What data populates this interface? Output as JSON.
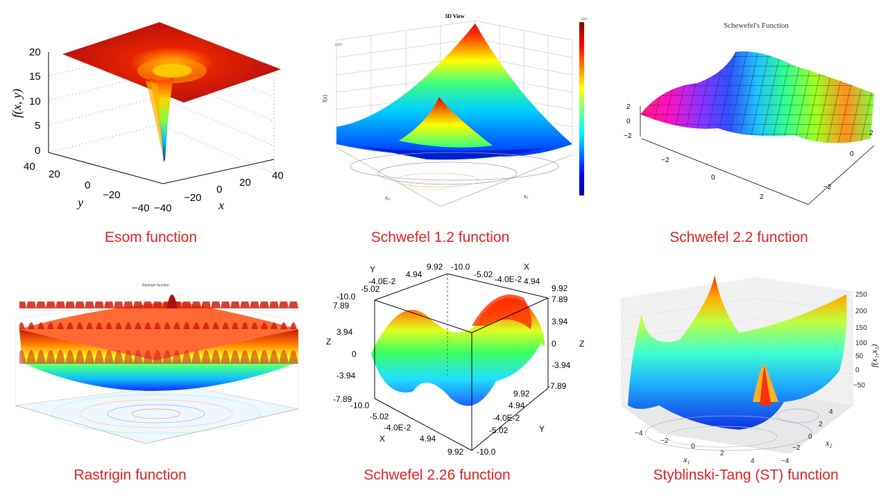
{
  "captions": {
    "esom": "Esom function",
    "schwefel12": "Schwefel 1.2 function",
    "schwefel22": "Schwefel 2.2 function",
    "rastrigin": "Rastrigin function",
    "schwefel226": "Schwefel 2.26 function",
    "st": "Styblinski-Tang (ST) function"
  },
  "esom_plot": {
    "zlabel": "f(x, y)",
    "xlabel": "x",
    "ylabel": "y",
    "zticks": [
      "20",
      "15",
      "10",
      "5",
      "0"
    ],
    "yticks": [
      "40",
      "20",
      "0",
      "−20",
      "−40"
    ],
    "xticks": [
      "−40",
      "−20",
      "0",
      "20",
      "40"
    ]
  },
  "schwefel12_plot": {
    "title": "3D View",
    "colorbar_scale": "x10⁴",
    "zlabel": "f(x)",
    "xlabel": "x₁",
    "ylabel": "x₂"
  },
  "schwefel22_plot": {
    "title": "Schewefel's Function",
    "zticks": [
      "2",
      "0",
      "−2"
    ],
    "xticks": [
      "−2",
      "0",
      "2"
    ],
    "yticks": [
      "2",
      "0",
      "−2"
    ]
  },
  "rastrigin_plot": {
    "title": "Rastrigin function"
  },
  "schwefel226_plot": {
    "labels": {
      "y_top": "Y",
      "x_top": "X",
      "z_left": "Z",
      "z_right": "Z",
      "x_bottom": "X",
      "y_bottom": "Y",
      "top_left": [
        "9.92",
        "4.94",
        "-4.0E-2",
        "-5.02",
        "-10.0"
      ],
      "top_right": [
        "-10.0",
        "-5.02",
        "-4.0E-2",
        "4.94",
        "9.92"
      ],
      "z_left_ticks": [
        "7.89",
        "3.94",
        "0",
        "-3.94",
        "-7.89"
      ],
      "z_right_ticks": [
        "7.89",
        "3.94",
        "0",
        "-3.94",
        "-7.89"
      ],
      "bottom_left": [
        "-10.0",
        "-5.02",
        "-4.0E-2",
        "4.94",
        "9.92"
      ],
      "bottom_right": [
        "9.92",
        "4.94",
        "-4.0E-2",
        "-5.02",
        "-10.0"
      ]
    }
  },
  "st_plot": {
    "zlabel": "f(x₁,x₂)",
    "xlabel": "x₁",
    "ylabel": "x₂",
    "zticks": [
      "250",
      "200",
      "150",
      "100",
      "50",
      "0",
      "−50"
    ],
    "xticks": [
      "−4",
      "−2",
      "0",
      "2",
      "4"
    ],
    "yticks": [
      "4",
      "2",
      "0",
      "−2",
      "−4"
    ]
  }
}
